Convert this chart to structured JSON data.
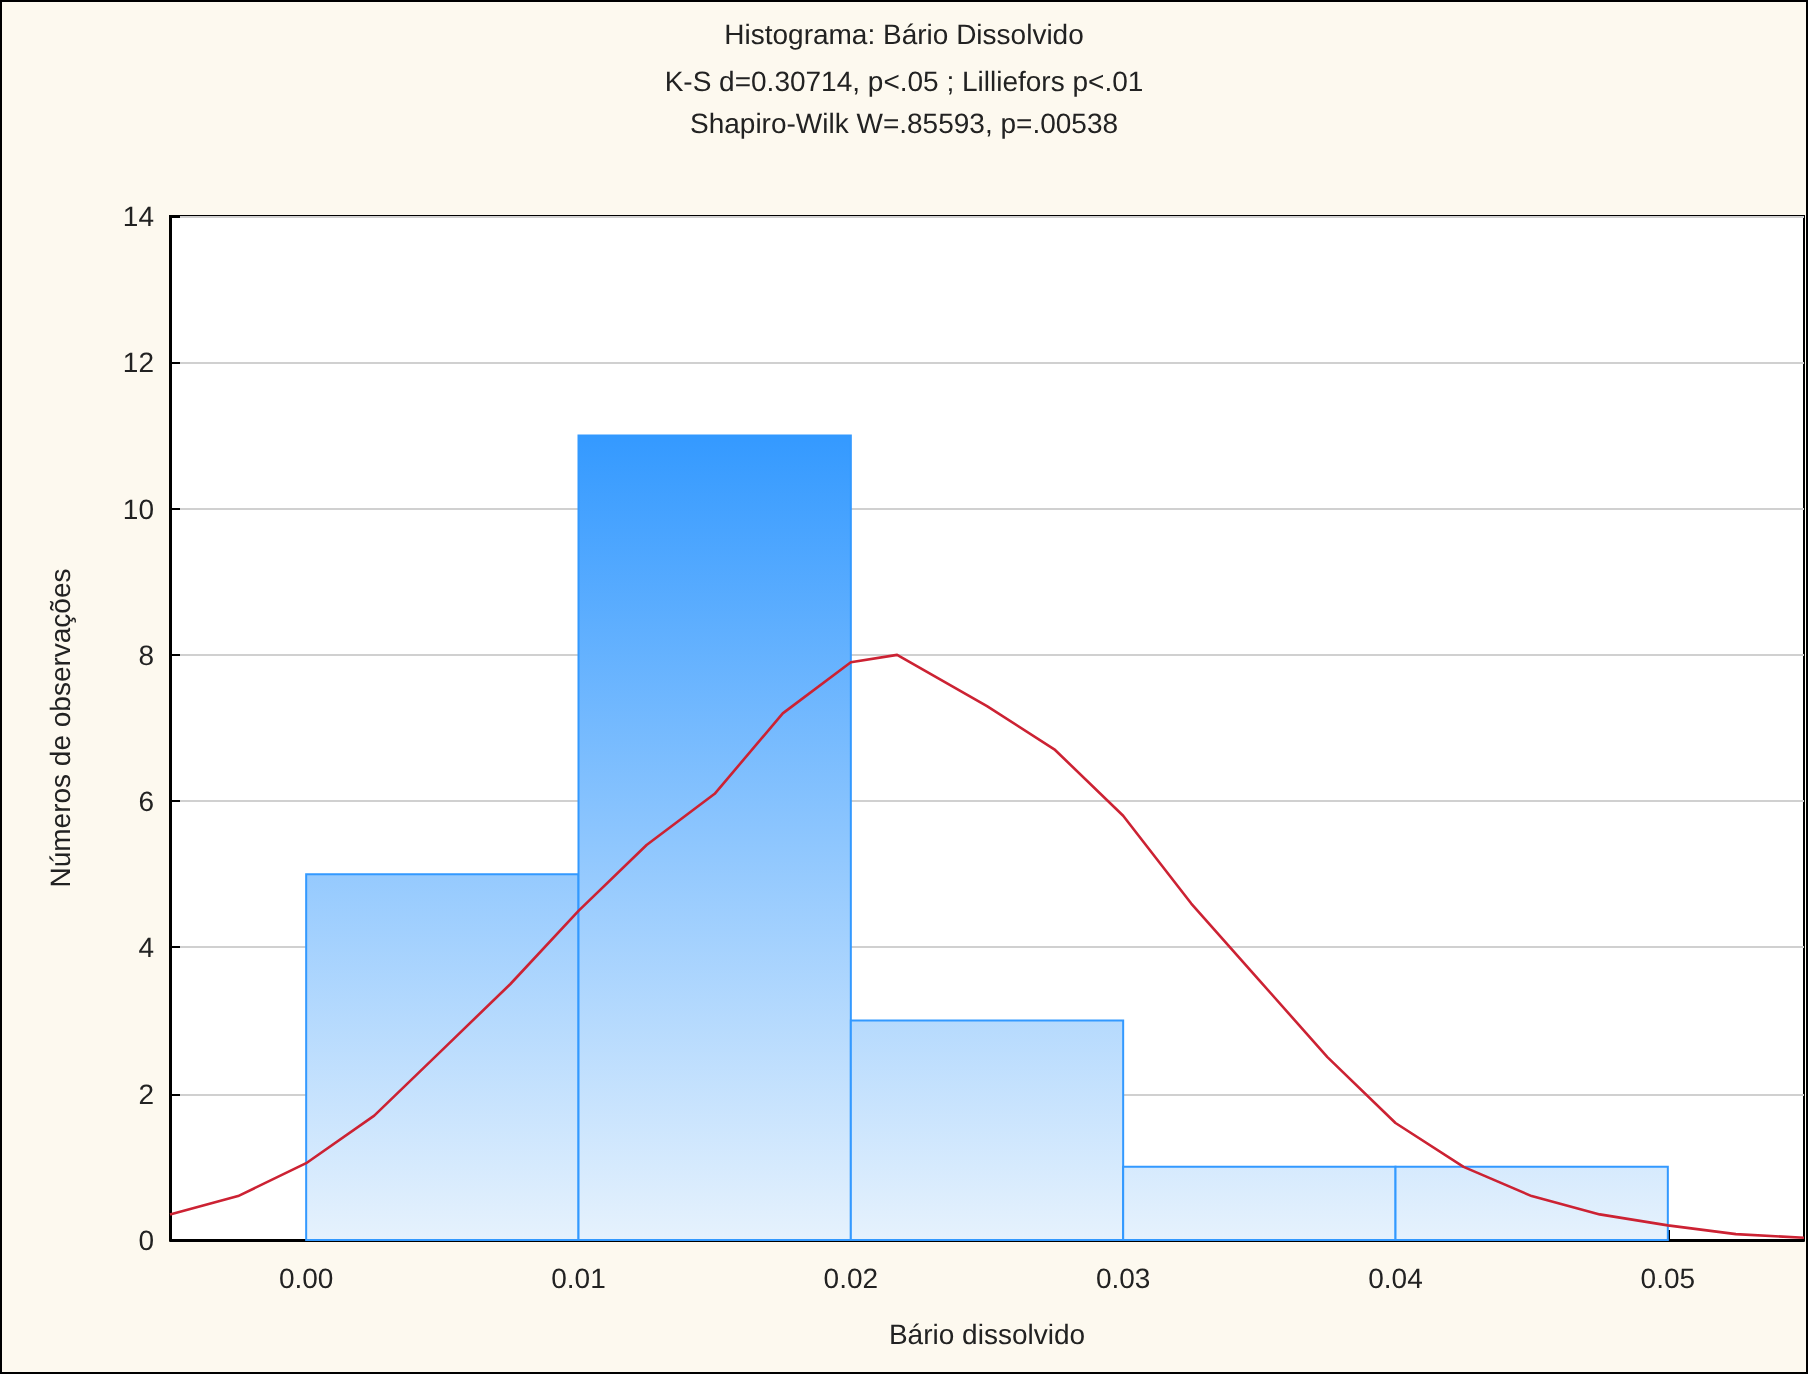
{
  "chart_data": {
    "type": "histogram",
    "title": "Histograma: Bário Dissolvido",
    "subtitle": "K-S d=0.30714, p<.05 ; Lilliefors p<.01\nShapiro-Wilk W=.85593, p=.00538",
    "xlabel": "Bário dissolvido",
    "ylabel": "Números de observações",
    "bins": [
      0,
      0.01,
      0.02,
      0.03,
      0.04,
      0.05
    ],
    "values": [
      5,
      11,
      3,
      1,
      1
    ],
    "color": "#3399ff",
    "xlim": [
      -0.005,
      0.055
    ],
    "xticks": [
      {
        "value": 0,
        "label": "0.00"
      },
      {
        "value": 0.01,
        "label": "0.01"
      },
      {
        "value": 0.02,
        "label": "0.02"
      },
      {
        "value": 0.03,
        "label": "0.03"
      },
      {
        "value": 0.04,
        "label": "0.04"
      },
      {
        "value": 0.05,
        "label": "0.05"
      }
    ],
    "ylim": [
      0,
      14
    ],
    "yticks": [
      0,
      2,
      4,
      6,
      8,
      10,
      12,
      14
    ],
    "grid": "y",
    "series": [
      {
        "type": "line",
        "color": "#cc2233",
        "x": [
          -0.005,
          -0.0025,
          0,
          0.0025,
          0.005,
          0.0075,
          0.01,
          0.0125,
          0.015,
          0.0175,
          0.02,
          0.0217,
          0.025,
          0.0275,
          0.03,
          0.0325,
          0.035,
          0.0375,
          0.04,
          0.0425,
          0.045,
          0.0475,
          0.05,
          0.0525,
          0.055
        ],
        "values": [
          0.35,
          0.6,
          1.05,
          1.7,
          2.6,
          3.5,
          4.5,
          5.4,
          6.1,
          7.2,
          7.9,
          8.0,
          7.3,
          6.7,
          5.8,
          4.6,
          3.55,
          2.5,
          1.6,
          1.0,
          0.6,
          0.35,
          0.2,
          0.08,
          0.03
        ]
      }
    ]
  }
}
